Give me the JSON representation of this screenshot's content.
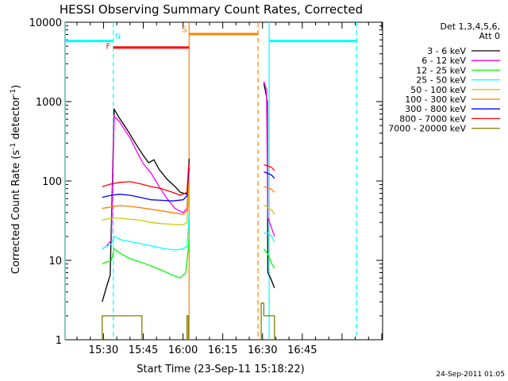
{
  "chart_data": {
    "type": "line",
    "title": "HESSI Observing Summary Count Rates, Corrected",
    "xlabel": "Start Time (23-Sep-11 15:18:22)",
    "ylabel": "Corrected Count Rate (s⁻¹ detector⁻¹)",
    "ylabel_parts": {
      "pre": "Corrected Count Rate (s",
      "sup1": "-1",
      "mid": " detector",
      "sup2": "-1",
      "post": ")"
    },
    "yscale": "log",
    "ylim": [
      1,
      10000
    ],
    "xlim_minutes": [
      15.5,
      92.5
    ],
    "xticks": [
      {
        "label": "15:30",
        "t": 30
      },
      {
        "label": "15:45",
        "t": 45
      },
      {
        "label": "16:00",
        "t": 60
      },
      {
        "label": "16:15",
        "t": 75
      },
      {
        "label": "16:30",
        "t": 90
      },
      {
        "label": "16:45",
        "t": 105
      }
    ],
    "yticks": [
      {
        "label": "1",
        "v": 1
      },
      {
        "label": "10",
        "v": 10
      },
      {
        "label": "100",
        "v": 100
      },
      {
        "label": "1000",
        "v": 1000
      },
      {
        "label": "10000",
        "v": 10000
      }
    ],
    "legend_header": [
      "Det 1,3,4,5,6,",
      "Att 0"
    ],
    "legend_placement": "right",
    "series": [
      {
        "name": "3 - 6 keV",
        "color": "#000000",
        "segments": [
          [
            [
              29.5,
              3
            ],
            [
              31,
              4.5
            ],
            [
              32.5,
              6.5
            ],
            [
              34,
              800
            ],
            [
              36,
              620
            ],
            [
              39,
              440
            ],
            [
              42,
              300
            ],
            [
              45,
              210
            ],
            [
              47,
              170
            ],
            [
              49,
              185
            ],
            [
              51,
              140
            ],
            [
              54,
              105
            ],
            [
              57,
              85
            ],
            [
              59,
              72
            ],
            [
              61.5,
              68
            ],
            [
              62,
              130
            ],
            [
              62.3,
              190
            ]
          ],
          [
            [
              90.5,
              1700
            ],
            [
              91.2,
              1300
            ],
            [
              91.8,
              1000
            ],
            [
              92,
              7
            ],
            [
              93,
              6
            ],
            [
              94.5,
              4.5
            ]
          ]
        ]
      },
      {
        "name": "6 - 12 keV",
        "color": "#ff00ff",
        "segments": [
          [
            [
              29.5,
              14
            ],
            [
              31,
              15
            ],
            [
              33,
              18
            ],
            [
              34,
              650
            ],
            [
              36,
              560
            ],
            [
              40,
              350
            ],
            [
              43,
              220
            ],
            [
              45,
              165
            ],
            [
              48,
              125
            ],
            [
              51,
              85
            ],
            [
              54,
              60
            ],
            [
              57,
              45
            ],
            [
              60,
              40
            ],
            [
              61.5,
              45
            ],
            [
              62,
              110
            ],
            [
              62.3,
              160
            ]
          ],
          [
            [
              90.5,
              1800
            ],
            [
              91.5,
              1400
            ],
            [
              92,
              35
            ],
            [
              93,
              28
            ],
            [
              94.5,
              20
            ]
          ]
        ]
      },
      {
        "name": "12 - 25 keV",
        "color": "#00ff00",
        "segments": [
          [
            [
              29.5,
              9
            ],
            [
              31,
              9.5
            ],
            [
              33,
              10
            ],
            [
              34,
              14
            ],
            [
              36,
              12.5
            ],
            [
              40,
              10.5
            ],
            [
              44,
              9.5
            ],
            [
              48,
              8.5
            ],
            [
              52,
              7.5
            ],
            [
              56,
              6.5
            ],
            [
              59,
              6
            ],
            [
              61,
              7
            ],
            [
              62,
              14
            ],
            [
              62.3,
              19
            ]
          ],
          [
            [
              90.5,
              14
            ],
            [
              92,
              12
            ],
            [
              93.5,
              9
            ],
            [
              94.5,
              8
            ]
          ]
        ]
      },
      {
        "name": "25 - 50 keV",
        "color": "#00ffff",
        "segments": [
          [
            [
              29.5,
              14
            ],
            [
              31,
              15
            ],
            [
              33,
              16
            ],
            [
              34,
              20
            ],
            [
              37,
              18
            ],
            [
              41,
              17
            ],
            [
              45,
              16
            ],
            [
              49,
              15
            ],
            [
              53,
              14
            ],
            [
              57,
              13.5
            ],
            [
              60,
              14
            ],
            [
              61.5,
              15
            ],
            [
              62,
              26
            ],
            [
              62.3,
              40
            ]
          ],
          [
            [
              90.5,
              22
            ],
            [
              92,
              22
            ],
            [
              93.5,
              20
            ],
            [
              94.5,
              17
            ]
          ]
        ]
      },
      {
        "name": "50 - 100 keV",
        "color": "#cccc00",
        "segments": [
          [
            [
              29.5,
              32
            ],
            [
              31,
              33
            ],
            [
              33,
              34
            ],
            [
              36,
              34
            ],
            [
              40,
              33
            ],
            [
              44,
              32
            ],
            [
              48,
              30
            ],
            [
              52,
              29
            ],
            [
              56,
              28.5
            ],
            [
              60,
              28
            ],
            [
              61.5,
              30
            ],
            [
              62,
              60
            ],
            [
              62.3,
              80
            ]
          ],
          [
            [
              90.5,
              50
            ],
            [
              92,
              46
            ],
            [
              93.5,
              43
            ],
            [
              94.5,
              38
            ]
          ]
        ]
      },
      {
        "name": "100 - 300 keV",
        "color": "#ff8000",
        "segments": [
          [
            [
              29.5,
              45
            ],
            [
              31,
              46
            ],
            [
              33,
              47
            ],
            [
              36,
              49
            ],
            [
              40,
              48
            ],
            [
              44,
              46
            ],
            [
              48,
              44
            ],
            [
              52,
              42
            ],
            [
              56,
              40
            ],
            [
              60,
              38
            ],
            [
              61.5,
              42
            ],
            [
              62,
              90
            ],
            [
              62.3,
              110
            ]
          ],
          [
            [
              90.5,
              85
            ],
            [
              92,
              82
            ],
            [
              93.5,
              78
            ],
            [
              94.5,
              72
            ]
          ]
        ]
      },
      {
        "name": "300 - 800 keV",
        "color": "#0000ff",
        "segments": [
          [
            [
              29.5,
              62
            ],
            [
              31,
              64
            ],
            [
              33,
              66
            ],
            [
              36,
              68
            ],
            [
              40,
              66
            ],
            [
              44,
              62
            ],
            [
              48,
              58
            ],
            [
              52,
              57
            ],
            [
              56,
              56
            ],
            [
              60,
              58
            ],
            [
              61.5,
              65
            ],
            [
              62,
              120
            ],
            [
              62.3,
              145
            ]
          ],
          [
            [
              90.5,
              130
            ],
            [
              92,
              125
            ],
            [
              93.5,
              118
            ],
            [
              94.5,
              108
            ]
          ]
        ]
      },
      {
        "name": "800 - 7000 keV",
        "color": "#ff0000",
        "segments": [
          [
            [
              29.5,
              85
            ],
            [
              31,
              88
            ],
            [
              33,
              92
            ],
            [
              36,
              96
            ],
            [
              40,
              98
            ],
            [
              44,
              92
            ],
            [
              48,
              85
            ],
            [
              52,
              80
            ],
            [
              56,
              72
            ],
            [
              59,
              66
            ],
            [
              61.5,
              72
            ],
            [
              62,
              140
            ],
            [
              62.3,
              170
            ]
          ],
          [
            [
              90.5,
              160
            ],
            [
              92,
              155
            ],
            [
              93.5,
              148
            ],
            [
              94.5,
              135
            ]
          ]
        ]
      },
      {
        "name": "7000 - 20000 keV",
        "color": "#808000",
        "segments": [
          [
            [
              29.5,
              1
            ],
            [
              29.5,
              2
            ],
            [
              44.5,
              2
            ],
            [
              44.5,
              1
            ]
          ],
          [
            [
              61.5,
              1
            ],
            [
              61.5,
              2
            ],
            [
              62,
              2
            ],
            [
              62,
              1
            ]
          ],
          [
            [
              89.5,
              1
            ],
            [
              89.5,
              2.9
            ],
            [
              90.5,
              2.9
            ],
            [
              90.5,
              2
            ],
            [
              94.5,
              2
            ],
            [
              94.5,
              1
            ]
          ]
        ]
      }
    ],
    "vlines_dashed": [
      {
        "color": "#00ffff",
        "t": 33.7
      },
      {
        "color": "#00ffff",
        "t": 125.5
      },
      {
        "color": "#ff8000",
        "t": 88.3
      }
    ],
    "vlines_solid": [
      {
        "color": "#00ffff",
        "t": 15.6
      },
      {
        "color": "#00ffff",
        "t": 92.5
      },
      {
        "color": "#ff8000",
        "t": 62.3
      }
    ],
    "top_bars": [
      {
        "color": "#00ffff",
        "t0": 15.5,
        "t1": 33.7,
        "v": 5800
      },
      {
        "color": "#00ffff",
        "t0": 92.5,
        "t1": 125.5,
        "v": 5800
      },
      {
        "color": "#ff0000",
        "t0": 33.7,
        "t1": 62.3,
        "v": 4800
      },
      {
        "color": "#ff8000",
        "t0": 62.3,
        "t1": 88.3,
        "v": 7100
      }
    ],
    "flags": [
      {
        "text": "N",
        "color": "#00ffff",
        "t": 35.4,
        "v": 6200
      },
      {
        "text": "F",
        "color": "#ff0000",
        "t": 31.8,
        "v": 4600
      },
      {
        "text": "S",
        "color": "#ff8000",
        "t": 60.5,
        "v": 7500
      }
    ]
  },
  "footer_timestamp": "24-Sep-2011 01:05"
}
